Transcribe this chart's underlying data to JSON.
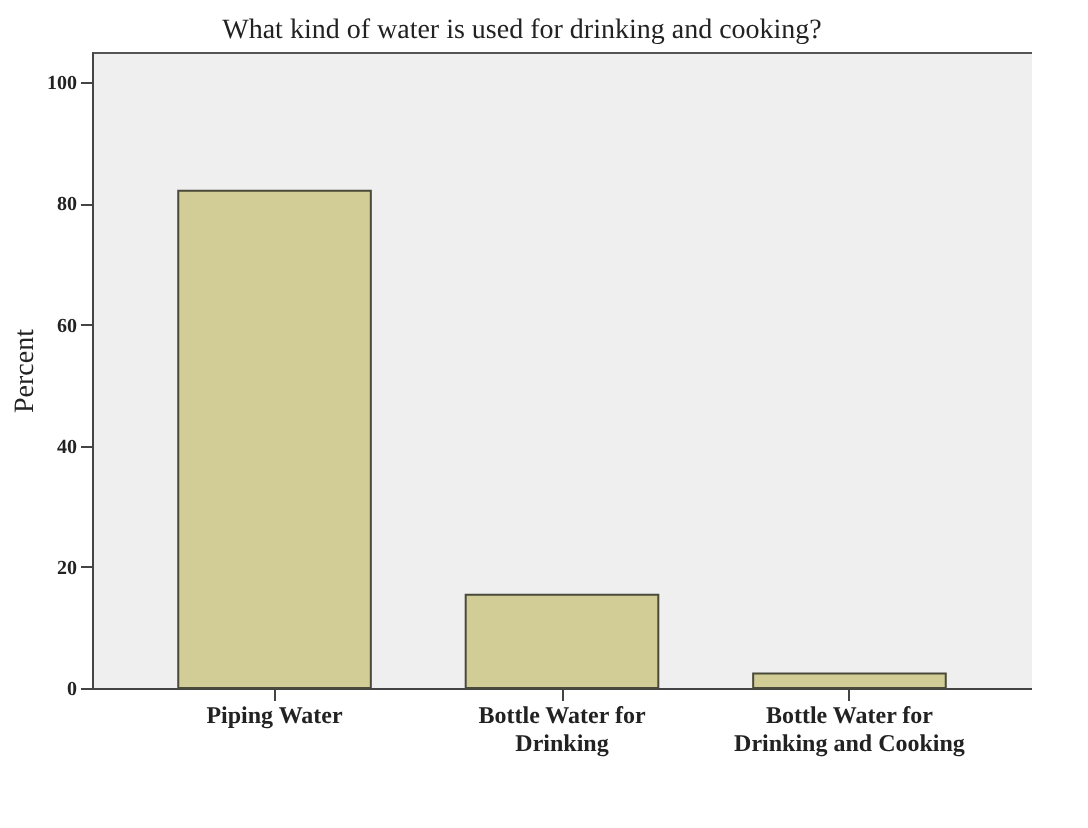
{
  "chart_data": {
    "type": "bar",
    "title": "What kind of water is used for drinking and cooking?",
    "ylabel": "Percent",
    "categories": [
      "Piping Water",
      "Bottle Water for Drinking",
      "Bottle Water for Drinking and Cooking"
    ],
    "values": [
      82.1,
      15.4,
      2.4
    ],
    "color": "#d2cc96",
    "ylim": [
      0,
      105
    ],
    "yticks": [
      0,
      20,
      40,
      60,
      80,
      100
    ],
    "grid": false
  }
}
